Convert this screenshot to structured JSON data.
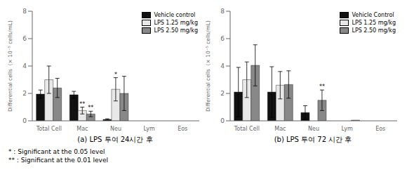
{
  "chart_data": [
    {
      "type": "bar",
      "title": "(a) LPS 투여 24시간 후",
      "categories": [
        "Total Cell",
        "Mac",
        "Neu",
        "Lym",
        "Eos"
      ],
      "series": [
        {
          "name": "Vehicle control",
          "color": "#111111",
          "values": [
            1.95,
            1.9,
            0.1,
            0.0,
            0.0
          ],
          "errors": [
            0.3,
            0.25,
            0.05,
            0.0,
            0.0
          ]
        },
        {
          "name": "LPS 1.25 mg/kg",
          "color": "#e8e8e8",
          "values": [
            3.0,
            0.75,
            2.3,
            0.0,
            0.0
          ],
          "errors": [
            1.0,
            0.25,
            0.85,
            0.0,
            0.0
          ]
        },
        {
          "name": "LPS 2.50 mg/kg",
          "color": "#888888",
          "values": [
            2.4,
            0.5,
            2.0,
            0.0,
            0.0
          ],
          "errors": [
            0.7,
            0.2,
            1.25,
            0.0,
            0.0
          ]
        }
      ],
      "annotations": [
        {
          "category": "Mac",
          "series": "LPS 1.25 mg/kg",
          "text": "**"
        },
        {
          "category": "Mac",
          "series": "LPS 2.50 mg/kg",
          "text": "**"
        },
        {
          "category": "Neu",
          "series": "LPS 1.25 mg/kg",
          "text": "*"
        }
      ],
      "ylabel": "Differential cells  (× 10⁻⁵ cells/mL)",
      "ylim": [
        0,
        8
      ],
      "yticks": [
        0,
        2,
        4,
        6,
        8
      ],
      "legend": "upper right",
      "grid": false
    },
    {
      "type": "bar",
      "title": "(b) LPS 투여 72 시간 후",
      "categories": [
        "Total Cell",
        "Mac",
        "Neu",
        "Lym",
        "Eos"
      ],
      "series": [
        {
          "name": "Vehicle Control",
          "color": "#111111",
          "values": [
            2.1,
            2.1,
            0.6,
            0.0,
            0.0
          ],
          "errors": [
            1.8,
            1.85,
            0.5,
            0.0,
            0.0
          ]
        },
        {
          "name": "LPS 1.25 mg/kg",
          "color": "#e8e8e8",
          "values": [
            3.0,
            2.6,
            0.0,
            0.0,
            0.0
          ],
          "errors": [
            1.3,
            1.0,
            0.0,
            0.0,
            0.0
          ]
        },
        {
          "name": "LPS 2.50 mg/kg",
          "color": "#888888",
          "values": [
            4.05,
            2.65,
            1.5,
            0.05,
            0.0
          ],
          "errors": [
            1.5,
            1.0,
            0.75,
            0.0,
            0.0
          ]
        }
      ],
      "annotations": [
        {
          "category": "Neu",
          "series": "LPS 2.50 mg/kg",
          "text": "**"
        }
      ],
      "ylabel": "Differential cells  (× 10⁻⁵ cells/mL)",
      "ylim": [
        0,
        8
      ],
      "yticks": [
        0,
        2,
        4,
        6,
        8
      ],
      "legend": "upper right",
      "grid": false
    }
  ],
  "annotations": [
    "* : Significant at the 0.05 level",
    "** : Significant at the 0.01 level"
  ]
}
